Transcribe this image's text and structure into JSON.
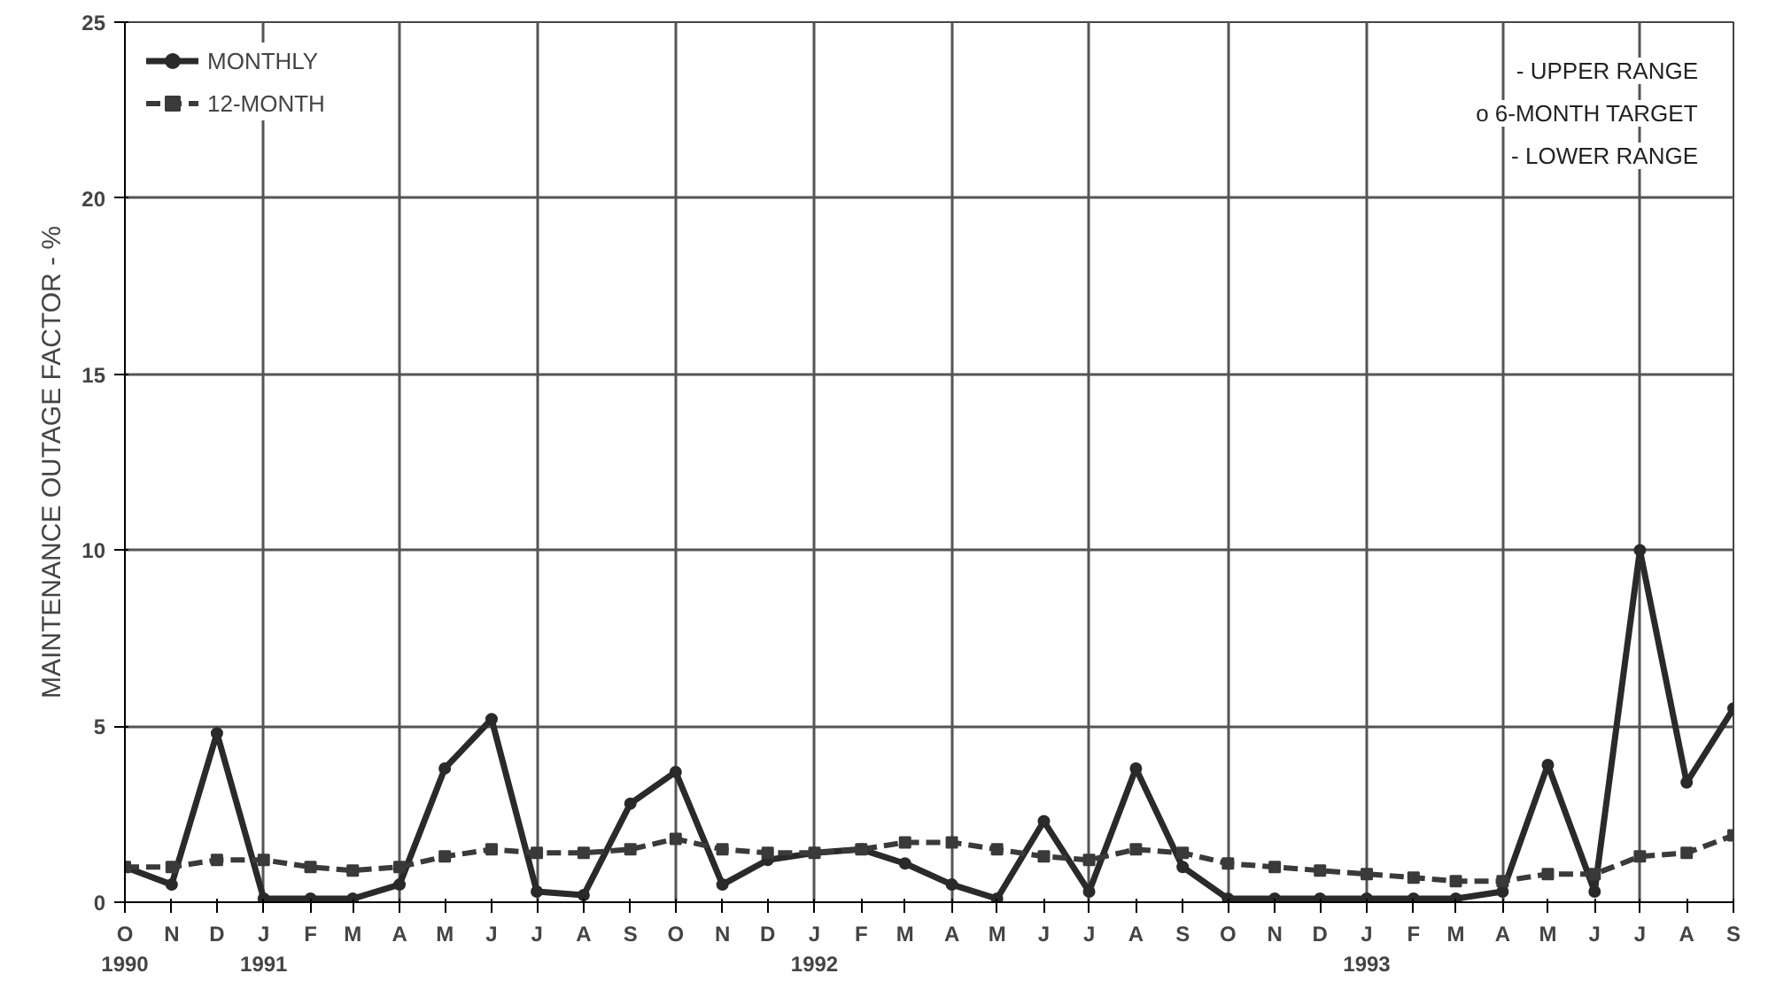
{
  "chart_data": {
    "type": "line",
    "ylabel": "MAINTENANCE OUTAGE FACTOR - %",
    "x": [
      "1990-10",
      "1990-11",
      "1990-12",
      "1991-01",
      "1991-02",
      "1991-03",
      "1991-04",
      "1991-05",
      "1991-06",
      "1991-07",
      "1991-08",
      "1991-09",
      "1991-10",
      "1991-11",
      "1991-12",
      "1992-01",
      "1992-02",
      "1992-03",
      "1992-04",
      "1992-05",
      "1992-06",
      "1992-07",
      "1992-08",
      "1992-09",
      "1992-10",
      "1992-11",
      "1992-12",
      "1993-01",
      "1993-02",
      "1993-03",
      "1993-04",
      "1993-05",
      "1993-06",
      "1993-07",
      "1993-08",
      "1993-09"
    ],
    "series": [
      {
        "name": "MONTHLY",
        "color": "#2a2a2a",
        "marker": "circle",
        "line_style": "solid",
        "values": [
          1.0,
          0.5,
          4.8,
          0.1,
          0.1,
          0.1,
          0.5,
          3.8,
          5.2,
          0.3,
          0.2,
          2.8,
          3.7,
          0.5,
          1.2,
          1.4,
          1.5,
          1.1,
          0.5,
          0.1,
          2.3,
          0.3,
          3.8,
          1.0,
          0.1,
          0.1,
          0.1,
          0.1,
          0.1,
          0.1,
          0.3,
          3.9,
          0.3,
          10.0,
          3.4,
          5.5
        ]
      },
      {
        "name": "12-MONTH",
        "color": "#3a3a3a",
        "marker": "square",
        "line_style": "dashed",
        "values": [
          1.0,
          1.0,
          1.2,
          1.2,
          1.0,
          0.9,
          1.0,
          1.3,
          1.5,
          1.4,
          1.4,
          1.5,
          1.8,
          1.5,
          1.4,
          1.4,
          1.5,
          1.7,
          1.7,
          1.5,
          1.3,
          1.2,
          1.5,
          1.4,
          1.1,
          1.0,
          0.9,
          0.8,
          0.7,
          0.6,
          0.6,
          0.8,
          0.8,
          1.3,
          1.4,
          1.9
        ]
      }
    ],
    "xlim": [
      "1990-10",
      "1993-09"
    ],
    "xticks": [
      {
        "value": "1990-10",
        "label": "O\n1990"
      },
      {
        "value": "1990-11",
        "label": "N"
      },
      {
        "value": "1990-12",
        "label": "D"
      },
      {
        "value": "1991-01",
        "label": "J\n1991"
      },
      {
        "value": "1991-02",
        "label": "F"
      },
      {
        "value": "1991-03",
        "label": "M"
      },
      {
        "value": "1991-04",
        "label": "A"
      },
      {
        "value": "1991-05",
        "label": "M"
      },
      {
        "value": "1991-06",
        "label": "J"
      },
      {
        "value": "1991-07",
        "label": "J"
      },
      {
        "value": "1991-08",
        "label": "A"
      },
      {
        "value": "1991-09",
        "label": "S"
      },
      {
        "value": "1991-10",
        "label": "O"
      },
      {
        "value": "1991-11",
        "label": "N"
      },
      {
        "value": "1991-12",
        "label": "D"
      },
      {
        "value": "1992-01",
        "label": "J\n1992"
      },
      {
        "value": "1992-02",
        "label": "F"
      },
      {
        "value": "1992-03",
        "label": "M"
      },
      {
        "value": "1992-04",
        "label": "A"
      },
      {
        "value": "1992-05",
        "label": "M"
      },
      {
        "value": "1992-06",
        "label": "J"
      },
      {
        "value": "1992-07",
        "label": "J"
      },
      {
        "value": "1992-08",
        "label": "A"
      },
      {
        "value": "1992-09",
        "label": "S"
      },
      {
        "value": "1992-10",
        "label": "O"
      },
      {
        "value": "1992-11",
        "label": "N"
      },
      {
        "value": "1992-12",
        "label": "D"
      },
      {
        "value": "1993-01",
        "label": "J\n1993"
      },
      {
        "value": "1993-02",
        "label": "F"
      },
      {
        "value": "1993-03",
        "label": "M"
      },
      {
        "value": "1993-04",
        "label": "A"
      },
      {
        "value": "1993-05",
        "label": "M"
      },
      {
        "value": "1993-06",
        "label": "J"
      },
      {
        "value": "1993-07",
        "label": "J"
      },
      {
        "value": "1993-08",
        "label": "A"
      },
      {
        "value": "1993-09",
        "label": "S"
      }
    ],
    "ylim": [
      0,
      25
    ],
    "yticks": [
      0,
      5,
      10,
      15,
      20,
      25
    ],
    "grid": true,
    "legend": "top left",
    "annotations": [
      "- UPPER RANGE",
      "o 6-MONTH TARGET",
      "- LOWER RANGE"
    ]
  }
}
